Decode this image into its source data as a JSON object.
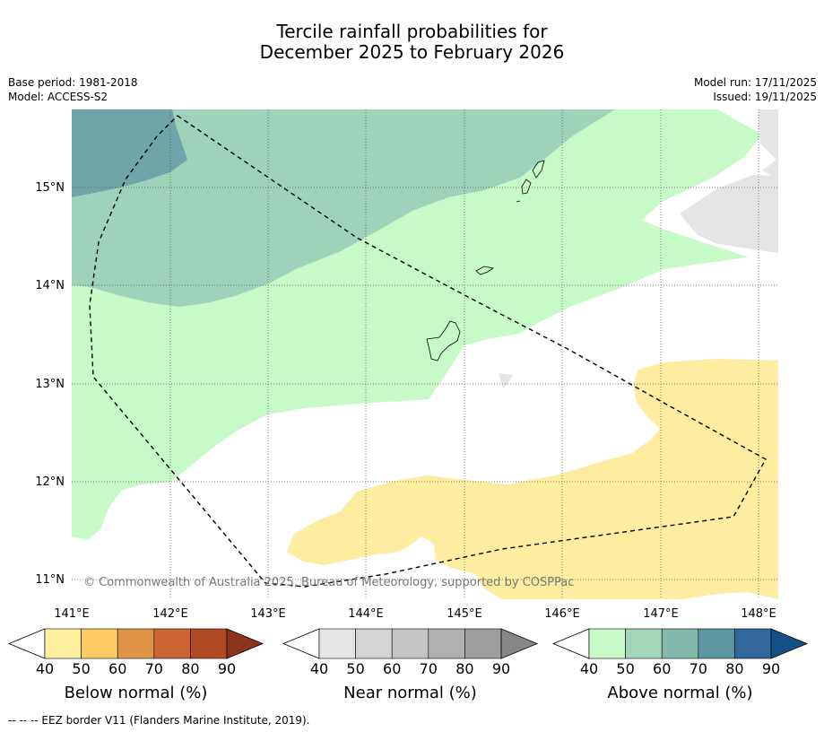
{
  "title": {
    "line1": "Tercile rainfall probabilities for",
    "line2": "December 2025 to February 2026"
  },
  "meta": {
    "base_period": "Base period: 1981-2018",
    "model": "Model: ACCESS-S2",
    "model_run": "Model run: 17/11/2025",
    "issued": "Issued: 19/11/2025"
  },
  "map": {
    "lat_labels": [
      "15°N",
      "14°N",
      "13°N",
      "12°N",
      "11°N"
    ],
    "lon_labels": [
      "141°E",
      "142°E",
      "143°E",
      "144°E",
      "145°E",
      "146°E",
      "147°E",
      "148°E"
    ],
    "copyright": "© Commonwealth of Australia 2025, Bureau of Meteorology, supported by COSPPac"
  },
  "colorbars": [
    {
      "title": "Below normal (%)",
      "ticks": [
        "40",
        "50",
        "60",
        "70",
        "80",
        "90"
      ],
      "under_color": "#ffffff",
      "colors": [
        "#fff0a0",
        "#fccb63",
        "#e09448",
        "#cc6531",
        "#b04a25"
      ],
      "over_color": "#8c331a"
    },
    {
      "title": "Near normal (%)",
      "ticks": [
        "40",
        "50",
        "60",
        "70",
        "80",
        "90"
      ],
      "under_color": "#ffffff",
      "colors": [
        "#e5e5e5",
        "#d4d4d4",
        "#c4c4c4",
        "#b0b0b0",
        "#9e9e9e"
      ],
      "over_color": "#878787"
    },
    {
      "title": "Above normal (%)",
      "ticks": [
        "40",
        "50",
        "60",
        "70",
        "80",
        "90"
      ],
      "under_color": "#ffffff",
      "colors": [
        "#c8fac8",
        "#a3d6b8",
        "#84b8ad",
        "#5c97a1",
        "#336699"
      ],
      "over_color": "#154f87"
    }
  ],
  "footer": "--  --  -- EEZ border V11 (Flanders Marine Institute, 2019)."
}
